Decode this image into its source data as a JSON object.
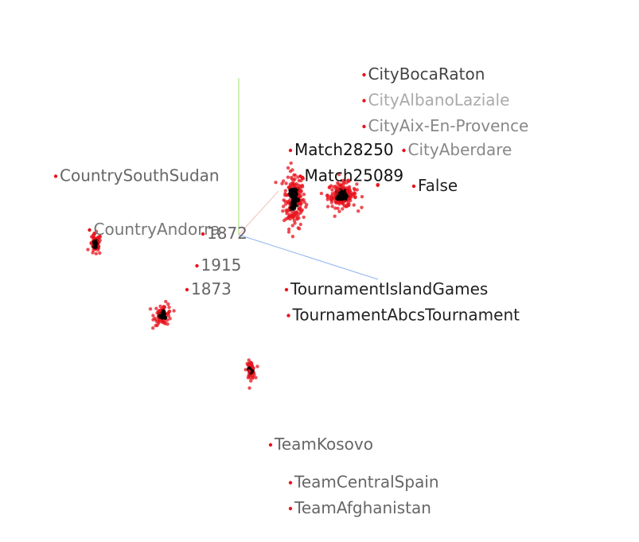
{
  "chart_data": {
    "type": "scatter",
    "projection": "3d",
    "point_color": "#e8141e",
    "dense_color": "#000000",
    "axes": [
      {
        "name": "y",
        "color": "#9fe06a"
      },
      {
        "name": "x",
        "color": "#8fb4ee"
      },
      {
        "name": "z",
        "color": "#f2c2b8"
      }
    ],
    "clusters": [
      {
        "name": "matches",
        "center": [
          0.28,
          0.18,
          0.5
        ],
        "spread": [
          0.3,
          0.8
        ],
        "count": 190
      },
      {
        "name": "cities",
        "center": [
          0.52,
          0.2,
          0.6
        ],
        "spread": [
          0.4,
          0.35
        ],
        "count": 190
      },
      {
        "name": "countries",
        "center": [
          -0.72,
          -0.05,
          0.4
        ],
        "spread": [
          0.16,
          0.3
        ],
        "count": 60
      },
      {
        "name": "years",
        "center": [
          -0.38,
          -0.4,
          0.3
        ],
        "spread": [
          0.25,
          0.3
        ],
        "count": 70
      },
      {
        "name": "tournaments",
        "center": [
          0.06,
          -0.68,
          0.3
        ],
        "spread": [
          0.12,
          0.25
        ],
        "count": 50
      },
      {
        "name": "teams",
        "center": [
          0.1,
          -1.6,
          0.2
        ],
        "spread": [
          0.14,
          0.35
        ],
        "count": 70
      },
      {
        "name": "booleans",
        "center": [
          0.7,
          0.25,
          0.2
        ],
        "spread": [
          0.02,
          0.02
        ],
        "count": 3
      }
    ],
    "labels": [
      {
        "text": "CityBocaRaton",
        "x": 0.65,
        "y": 0.78,
        "z": 0.5,
        "shade": "#444444"
      },
      {
        "text": "CityAlbanoLaziale",
        "x": 0.65,
        "y": 0.65,
        "z": 0.9,
        "shade": "#aaaaaa"
      },
      {
        "text": "CityAix-En-Provence",
        "x": 0.65,
        "y": 0.52,
        "z": 0.7,
        "shade": "#888888"
      },
      {
        "text": "Match28250",
        "x": 0.28,
        "y": 0.4,
        "z": 0.0,
        "shade": "#111111"
      },
      {
        "text": "CityAberdare",
        "x": 0.85,
        "y": 0.4,
        "z": 0.7,
        "shade": "#888888"
      },
      {
        "text": "CountrySouthSudan",
        "x": -0.9,
        "y": 0.27,
        "z": 0.4,
        "shade": "#666666"
      },
      {
        "text": "Match25089",
        "x": 0.33,
        "y": 0.27,
        "z": 0.1,
        "shade": "#111111"
      },
      {
        "text": "False",
        "x": 0.9,
        "y": 0.22,
        "z": 0.2,
        "shade": "#222222"
      },
      {
        "text": "CountryAndorra",
        "x": -0.73,
        "y": -0.0,
        "z": 0.5,
        "shade": "#777777"
      },
      {
        "text": "1872",
        "x": -0.16,
        "y": -0.02,
        "z": 0.5,
        "shade": "#666666"
      },
      {
        "text": "1915",
        "x": -0.19,
        "y": -0.18,
        "z": 0.5,
        "shade": "#666666"
      },
      {
        "text": "1873",
        "x": -0.24,
        "y": -0.3,
        "z": 0.5,
        "shade": "#666666"
      },
      {
        "text": "TournamentIslandGames",
        "x": 0.26,
        "y": -0.3,
        "z": 0.1,
        "shade": "#222222"
      },
      {
        "text": "TournamentAbcsTournament",
        "x": 0.27,
        "y": -0.43,
        "z": 0.1,
        "shade": "#222222"
      },
      {
        "text": "TeamKosovo",
        "x": 0.18,
        "y": -1.08,
        "z": 0.5,
        "shade": "#666666"
      },
      {
        "text": "TeamCentralSpain",
        "x": 0.28,
        "y": -1.27,
        "z": 0.5,
        "shade": "#666666"
      },
      {
        "text": "TeamAfghanistan",
        "x": 0.28,
        "y": -1.4,
        "z": 0.5,
        "shade": "#666666"
      }
    ]
  }
}
